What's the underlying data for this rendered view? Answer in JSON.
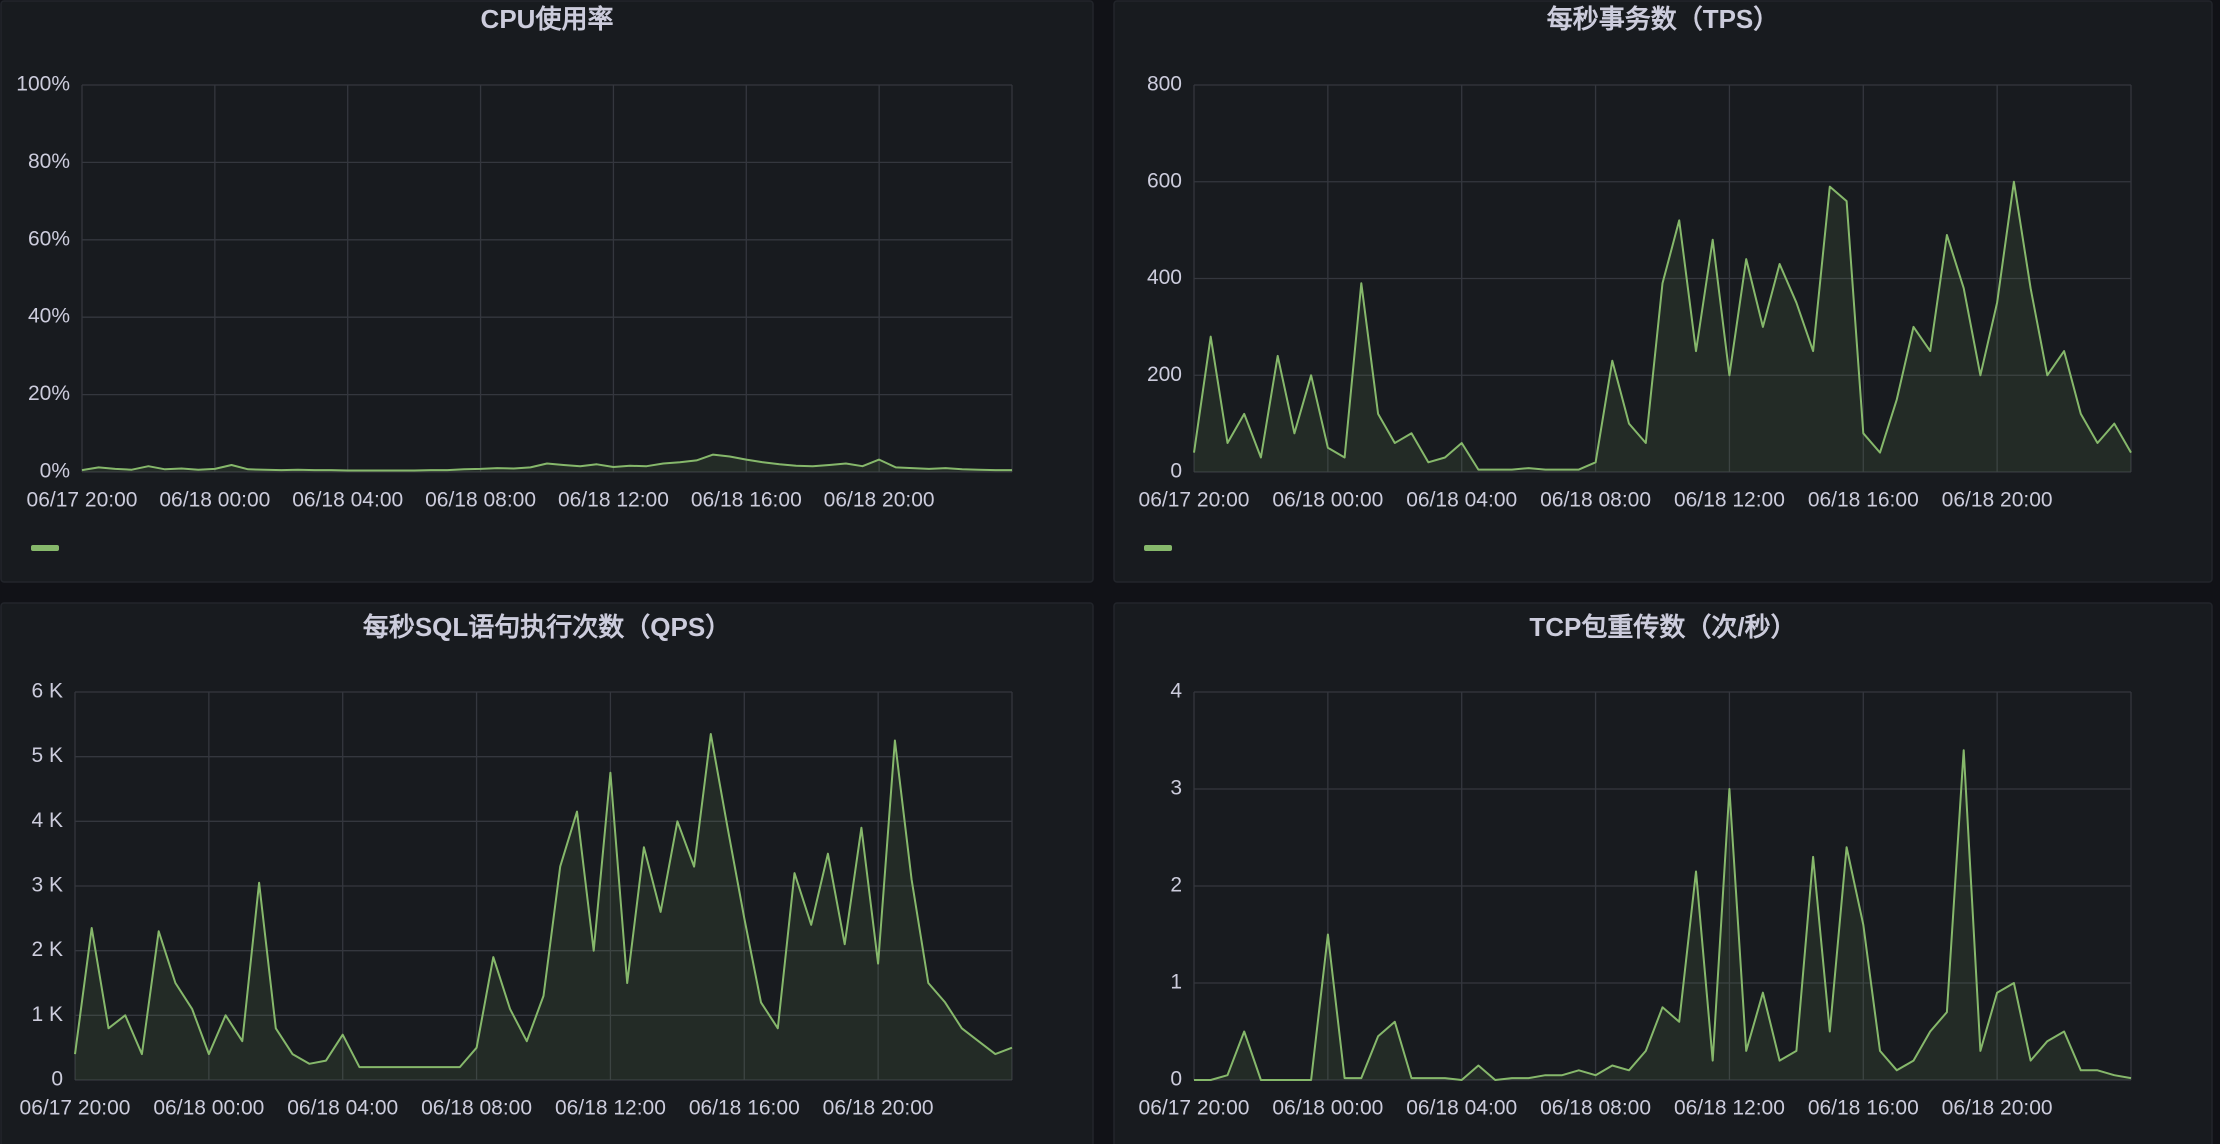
{
  "chart_data": [
    {
      "type": "area",
      "title": "CPU使用率",
      "x": [
        "06/17 20:00",
        "06/17 20:30",
        "06/17 21:00",
        "06/17 21:30",
        "06/17 22:00",
        "06/17 22:30",
        "06/17 23:00",
        "06/17 23:30",
        "06/18 00:00",
        "06/18 00:30",
        "06/18 01:00",
        "06/18 01:30",
        "06/18 02:00",
        "06/18 02:30",
        "06/18 03:00",
        "06/18 03:30",
        "06/18 04:00",
        "06/18 04:30",
        "06/18 05:00",
        "06/18 05:30",
        "06/18 06:00",
        "06/18 06:30",
        "06/18 07:00",
        "06/18 07:30",
        "06/18 08:00",
        "06/18 08:30",
        "06/18 09:00",
        "06/18 09:30",
        "06/18 10:00",
        "06/18 10:30",
        "06/18 11:00",
        "06/18 11:30",
        "06/18 12:00",
        "06/18 12:30",
        "06/18 13:00",
        "06/18 13:30",
        "06/18 14:00",
        "06/18 14:30",
        "06/18 15:00",
        "06/18 15:30",
        "06/18 16:00",
        "06/18 16:30",
        "06/18 17:00",
        "06/18 17:30",
        "06/18 18:00",
        "06/18 18:30",
        "06/18 19:00",
        "06/18 19:30",
        "06/18 20:00",
        "06/18 20:30",
        "06/18 21:00",
        "06/18 21:30",
        "06/18 22:00",
        "06/18 22:30",
        "06/18 23:00",
        "06/18 23:30",
        "06/19 00:00"
      ],
      "series": [
        {
          "color": "#86b86b",
          "values": [
            0.5,
            1.2,
            0.8,
            0.6,
            1.5,
            0.7,
            0.9,
            0.6,
            0.8,
            1.8,
            0.7,
            0.6,
            0.5,
            0.6,
            0.5,
            0.5,
            0.4,
            0.4,
            0.4,
            0.4,
            0.4,
            0.5,
            0.5,
            0.7,
            0.8,
            1.0,
            0.9,
            1.2,
            2.2,
            1.8,
            1.5,
            2.0,
            1.3,
            1.6,
            1.5,
            2.2,
            2.5,
            3.0,
            4.5,
            4.0,
            3.2,
            2.5,
            2.0,
            1.6,
            1.5,
            1.8,
            2.2,
            1.5,
            3.2,
            1.2,
            1.0,
            0.8,
            1.0,
            0.7,
            0.6,
            0.5,
            0.5
          ]
        }
      ],
      "xlim": [
        "06/17 20:00",
        "06/19 00:00"
      ],
      "xticks": [
        "06/17 20:00",
        "06/18 00:00",
        "06/18 04:00",
        "06/18 08:00",
        "06/18 12:00",
        "06/18 16:00",
        "06/18 20:00"
      ],
      "ylim": [
        0,
        100
      ],
      "yticks": [
        {
          "value": 0,
          "label": "0%"
        },
        {
          "value": 20,
          "label": "20%"
        },
        {
          "value": 40,
          "label": "40%"
        },
        {
          "value": 60,
          "label": "60%"
        },
        {
          "value": 80,
          "label": "80%"
        },
        {
          "value": 100,
          "label": "100%"
        }
      ],
      "grid": true,
      "legend": "bottom"
    },
    {
      "type": "area",
      "title": "每秒事务数（TPS）",
      "x": [
        "06/17 20:00",
        "06/17 20:30",
        "06/17 21:00",
        "06/17 21:30",
        "06/17 22:00",
        "06/17 22:30",
        "06/17 23:00",
        "06/17 23:30",
        "06/18 00:00",
        "06/18 00:30",
        "06/18 01:00",
        "06/18 01:30",
        "06/18 02:00",
        "06/18 02:30",
        "06/18 03:00",
        "06/18 03:30",
        "06/18 04:00",
        "06/18 04:30",
        "06/18 05:00",
        "06/18 05:30",
        "06/18 06:00",
        "06/18 06:30",
        "06/18 07:00",
        "06/18 07:30",
        "06/18 08:00",
        "06/18 08:30",
        "06/18 09:00",
        "06/18 09:30",
        "06/18 10:00",
        "06/18 10:30",
        "06/18 11:00",
        "06/18 11:30",
        "06/18 12:00",
        "06/18 12:30",
        "06/18 13:00",
        "06/18 13:30",
        "06/18 14:00",
        "06/18 14:30",
        "06/18 15:00",
        "06/18 15:30",
        "06/18 16:00",
        "06/18 16:30",
        "06/18 17:00",
        "06/18 17:30",
        "06/18 18:00",
        "06/18 18:30",
        "06/18 19:00",
        "06/18 19:30",
        "06/18 20:00",
        "06/18 20:30",
        "06/18 21:00",
        "06/18 21:30",
        "06/18 22:00",
        "06/18 22:30",
        "06/18 23:00",
        "06/18 23:30",
        "06/19 00:00"
      ],
      "series": [
        {
          "color": "#86b86b",
          "values": [
            40,
            280,
            60,
            120,
            30,
            240,
            80,
            200,
            50,
            30,
            390,
            120,
            60,
            80,
            20,
            30,
            60,
            5,
            5,
            5,
            8,
            5,
            5,
            5,
            20,
            230,
            100,
            60,
            390,
            520,
            250,
            480,
            200,
            440,
            300,
            430,
            350,
            250,
            590,
            560,
            80,
            40,
            150,
            300,
            250,
            490,
            380,
            200,
            350,
            600,
            380,
            200,
            250,
            120,
            60,
            100,
            40
          ]
        }
      ],
      "xlim": [
        "06/17 20:00",
        "06/19 00:00"
      ],
      "xticks": [
        "06/17 20:00",
        "06/18 00:00",
        "06/18 04:00",
        "06/18 08:00",
        "06/18 12:00",
        "06/18 16:00",
        "06/18 20:00"
      ],
      "ylim": [
        0,
        800
      ],
      "yticks": [
        0,
        200,
        400,
        600,
        800
      ],
      "grid": true,
      "legend": "bottom"
    },
    {
      "type": "area",
      "title": "每秒SQL语句执行次数（QPS）",
      "x": [
        "06/17 20:00",
        "06/17 20:30",
        "06/17 21:00",
        "06/17 21:30",
        "06/17 22:00",
        "06/17 22:30",
        "06/17 23:00",
        "06/17 23:30",
        "06/18 00:00",
        "06/18 00:30",
        "06/18 01:00",
        "06/18 01:30",
        "06/18 02:00",
        "06/18 02:30",
        "06/18 03:00",
        "06/18 03:30",
        "06/18 04:00",
        "06/18 04:30",
        "06/18 05:00",
        "06/18 05:30",
        "06/18 06:00",
        "06/18 06:30",
        "06/18 07:00",
        "06/18 07:30",
        "06/18 08:00",
        "06/18 08:30",
        "06/18 09:00",
        "06/18 09:30",
        "06/18 10:00",
        "06/18 10:30",
        "06/18 11:00",
        "06/18 11:30",
        "06/18 12:00",
        "06/18 12:30",
        "06/18 13:00",
        "06/18 13:30",
        "06/18 14:00",
        "06/18 14:30",
        "06/18 15:00",
        "06/18 15:30",
        "06/18 16:00",
        "06/18 16:30",
        "06/18 17:00",
        "06/18 17:30",
        "06/18 18:00",
        "06/18 18:30",
        "06/18 19:00",
        "06/18 19:30",
        "06/18 20:00",
        "06/18 20:30",
        "06/18 21:00",
        "06/18 21:30",
        "06/18 22:00",
        "06/18 22:30",
        "06/18 23:00",
        "06/18 23:30",
        "06/19 00:00"
      ],
      "series": [
        {
          "color": "#86b86b",
          "values": [
            400,
            2350,
            800,
            1000,
            400,
            2300,
            1500,
            1100,
            400,
            1000,
            600,
            3050,
            800,
            400,
            250,
            300,
            700,
            200,
            200,
            200,
            200,
            200,
            200,
            200,
            500,
            1900,
            1100,
            600,
            1300,
            3300,
            4150,
            2000,
            4750,
            1500,
            3600,
            2600,
            4000,
            3300,
            5350,
            3900,
            2500,
            1200,
            800,
            3200,
            2400,
            3500,
            2100,
            3900,
            1800,
            5250,
            3100,
            1500,
            1200,
            800,
            600,
            400,
            500
          ]
        }
      ],
      "xlim": [
        "06/17 20:00",
        "06/19 00:00"
      ],
      "xticks": [
        "06/17 20:00",
        "06/18 00:00",
        "06/18 04:00",
        "06/18 08:00",
        "06/18 12:00",
        "06/18 16:00",
        "06/18 20:00"
      ],
      "ylim": [
        0,
        6000
      ],
      "yticks": [
        0,
        {
          "value": 1000,
          "label": "1 K"
        },
        {
          "value": 2000,
          "label": "2 K"
        },
        {
          "value": 3000,
          "label": "3 K"
        },
        {
          "value": 4000,
          "label": "4 K"
        },
        {
          "value": 5000,
          "label": "5 K"
        },
        {
          "value": 6000,
          "label": "6 K"
        }
      ],
      "grid": true
    },
    {
      "type": "area",
      "title": "TCP包重传数（次/秒）",
      "x": [
        "06/17 20:00",
        "06/17 20:30",
        "06/17 21:00",
        "06/17 21:30",
        "06/17 22:00",
        "06/17 22:30",
        "06/17 23:00",
        "06/17 23:30",
        "06/18 00:00",
        "06/18 00:30",
        "06/18 01:00",
        "06/18 01:30",
        "06/18 02:00",
        "06/18 02:30",
        "06/18 03:00",
        "06/18 03:30",
        "06/18 04:00",
        "06/18 04:30",
        "06/18 05:00",
        "06/18 05:30",
        "06/18 06:00",
        "06/18 06:30",
        "06/18 07:00",
        "06/18 07:30",
        "06/18 08:00",
        "06/18 08:30",
        "06/18 09:00",
        "06/18 09:30",
        "06/18 10:00",
        "06/18 10:30",
        "06/18 11:00",
        "06/18 11:30",
        "06/18 12:00",
        "06/18 12:30",
        "06/18 13:00",
        "06/18 13:30",
        "06/18 14:00",
        "06/18 14:30",
        "06/18 15:00",
        "06/18 15:30",
        "06/18 16:00",
        "06/18 16:30",
        "06/18 17:00",
        "06/18 17:30",
        "06/18 18:00",
        "06/18 18:30",
        "06/18 19:00",
        "06/18 19:30",
        "06/18 20:00",
        "06/18 20:30",
        "06/18 21:00",
        "06/18 21:30",
        "06/18 22:00",
        "06/18 22:30",
        "06/18 23:00",
        "06/18 23:30",
        "06/19 00:00"
      ],
      "series": [
        {
          "color": "#86b86b",
          "values": [
            0,
            0,
            0.05,
            0.5,
            0,
            0,
            0,
            0,
            1.5,
            0.02,
            0.02,
            0.45,
            0.6,
            0.02,
            0.02,
            0.02,
            0,
            0.15,
            0,
            0.02,
            0.02,
            0.05,
            0.05,
            0.1,
            0.05,
            0.15,
            0.1,
            0.3,
            0.75,
            0.6,
            2.15,
            0.2,
            3.0,
            0.3,
            0.9,
            0.2,
            0.3,
            2.3,
            0.5,
            2.4,
            1.6,
            0.3,
            0.1,
            0.2,
            0.5,
            0.7,
            3.4,
            0.3,
            0.9,
            1.0,
            0.2,
            0.4,
            0.5,
            0.1,
            0.1,
            0.05,
            0.02
          ]
        }
      ],
      "xlim": [
        "06/17 20:00",
        "06/19 00:00"
      ],
      "xticks": [
        "06/17 20:00",
        "06/18 00:00",
        "06/18 04:00",
        "06/18 08:00",
        "06/18 12:00",
        "06/18 16:00",
        "06/18 20:00"
      ],
      "ylim": [
        0,
        4
      ],
      "yticks": [
        0,
        1,
        2,
        3,
        4
      ],
      "grid": true
    }
  ]
}
